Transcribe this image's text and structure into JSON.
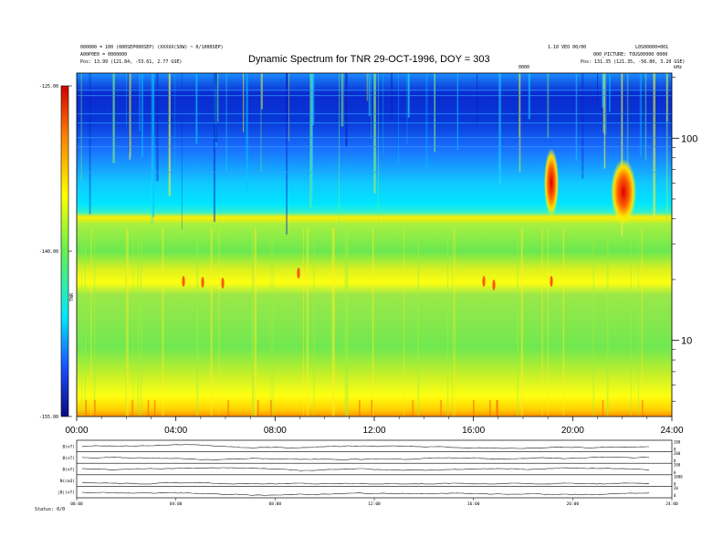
{
  "header": {
    "title": "Dynamic Spectrum for TNR 29-OCT-1996, DOY = 303",
    "left_line1": "000000 = 100 (000SEP000SEP) (XXXXX(SOW) ~ 0/1000SEP)",
    "left_line2": "A00P0E0 = 0000000",
    "left_line3": "Pos: 13.99 (121.84, -53.61, 2.77 GSE)",
    "right_line1": "1.10 VEO 00/00",
    "right_line2": "L0S00000=001",
    "right_line3": "000_PICTURE: TOUS00000 0000",
    "right_line4": "Pos: 131.35 (121.35, -56.80, 3.20 GSE)",
    "corner_label": "0000",
    "hz_label": "kHz"
  },
  "colorbar": {
    "label": "TNR",
    "ticks": [
      "-125.00",
      "-140.00",
      "-155.00"
    ]
  },
  "footer": {
    "label": "Status: 0/0"
  },
  "chart_data": [
    {
      "type": "heatmap",
      "title": "Dynamic Spectrum for TNR 29-OCT-1996, DOY = 303",
      "xlabel": "",
      "ylabel": "",
      "x_ticks": [
        "00:00",
        "04:00",
        "08:00",
        "12:00",
        "16:00",
        "20:00",
        "24:00"
      ],
      "xlim": [
        0,
        24
      ],
      "y_scale": "log",
      "y_unit": "kHz",
      "ylim": [
        4.2,
        210
      ],
      "y_ticks": [
        10,
        100
      ],
      "y_tick_labels": [
        "10",
        "100"
      ],
      "colorbar_range": [
        -155,
        -125
      ],
      "colorbar_ticks": [
        -125,
        -140,
        -155
      ],
      "colormap": [
        "#0a0a8c",
        "#1a4cff",
        "#00d8ff",
        "#5cf052",
        "#ffff00",
        "#ff9000",
        "#e00000"
      ],
      "features": [
        {
          "name": "plasma line",
          "time": [
            0,
            24
          ],
          "freq_khz": [
            32,
            38
          ]
        },
        {
          "name": "noise band",
          "time": [
            0,
            24
          ],
          "freq_khz": [
            17,
            24
          ]
        },
        {
          "name": "burst",
          "time": [
            19.0,
            19.6
          ],
          "freq_khz": [
            55,
            110
          ]
        },
        {
          "name": "burst",
          "time": [
            21.7,
            22.5
          ],
          "freq_khz": [
            45,
            95
          ]
        }
      ]
    },
    {
      "type": "line",
      "panels": [
        {
          "label": "B(nT)",
          "right_ticks": [
            "200",
            "0"
          ]
        },
        {
          "label": "B(nT)",
          "right_ticks": [
            "200",
            "0"
          ]
        },
        {
          "label": "B(nT)",
          "right_ticks": [
            "200",
            "0"
          ]
        },
        {
          "label": "N(cm3)",
          "right_ticks": [
            "1000",
            "0"
          ]
        },
        {
          "label": "|B|(nT)",
          "right_ticks": [
            "20",
            "0"
          ]
        }
      ],
      "x_ticks": [
        "00:00",
        "04:00",
        "08:00",
        "12:00",
        "16:00",
        "20:00",
        "24:00"
      ],
      "xlim": [
        0,
        24
      ]
    }
  ]
}
